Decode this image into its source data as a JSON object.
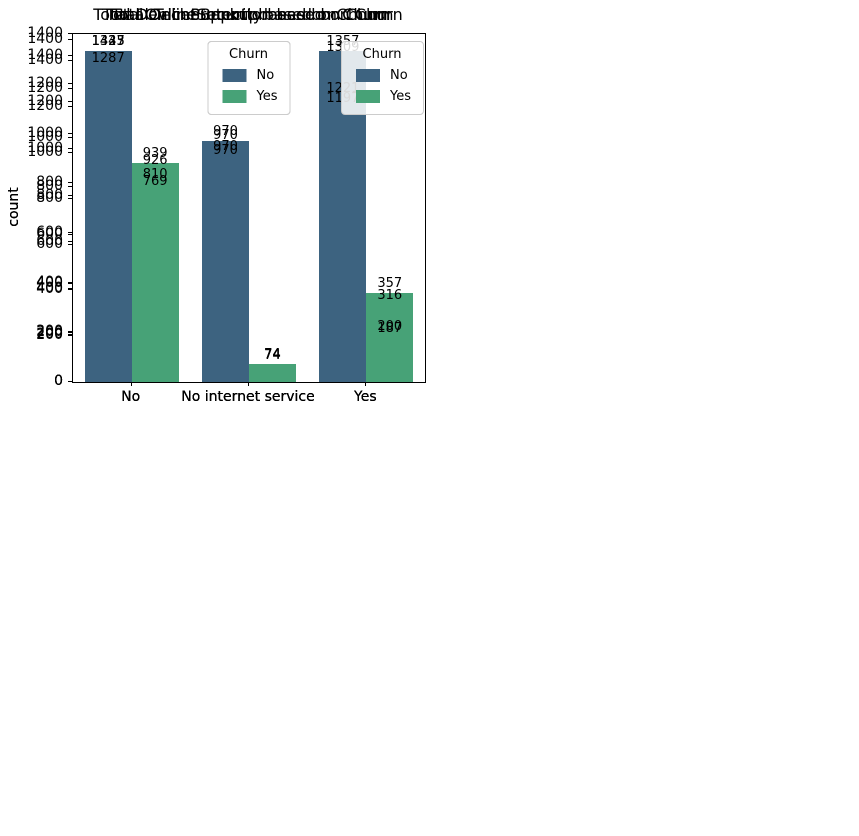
{
  "figure": {
    "background": "#ffffff"
  },
  "palette": {
    "churn_no": "#3d6380",
    "churn_yes": "#47a277"
  },
  "chart_data": [
    {
      "type": "bar",
      "title": "Total OnlineSecurity based on Churn",
      "xlabel": "",
      "ylabel": "count",
      "categories": [
        "No",
        "No internet service",
        "Yes"
      ],
      "series": [
        {
          "name": "No",
          "color": "#3d6380",
          "values": [
            1423,
            970,
            1221
          ]
        },
        {
          "name": "Yes",
          "color": "#47a277",
          "values": [
            939,
            74,
            187
          ]
        }
      ],
      "bar_labels": true,
      "legend_title": "Churn",
      "legend_position": "upper-center",
      "ylim": [
        0,
        1494
      ],
      "yticks": [
        0,
        200,
        400,
        600,
        800,
        1000,
        1200,
        1400
      ],
      "grid": false
    },
    {
      "type": "bar",
      "title": "Total OnlineBackup based on Churn",
      "xlabel": "",
      "ylabel": "count",
      "categories": [
        "No",
        "No internet service",
        "Yes"
      ],
      "series": [
        {
          "name": "No",
          "color": "#3d6380",
          "values": [
            1287,
            970,
            1357
          ]
        },
        {
          "name": "Yes",
          "color": "#47a277",
          "values": [
            810,
            74,
            316
          ]
        }
      ],
      "bar_labels": true,
      "legend_title": "Churn",
      "legend_position": "upper-center",
      "ylim": [
        0,
        1425
      ],
      "yticks": [
        0,
        200,
        400,
        600,
        800,
        1000,
        1200,
        1400
      ],
      "grid": false
    },
    {
      "type": "bar",
      "title": "Total DeviceProtection based on Churn",
      "xlabel": "",
      "ylabel": "count",
      "categories": [
        "No",
        "No internet service",
        "Yes"
      ],
      "series": [
        {
          "name": "No",
          "color": "#3d6380",
          "values": [
            1335,
            970,
            1309
          ]
        },
        {
          "name": "Yes",
          "color": "#47a277",
          "values": [
            769,
            74,
            357
          ]
        }
      ],
      "bar_labels": true,
      "legend_title": "Churn",
      "legend_position": "upper-center",
      "ylim": [
        0,
        1402
      ],
      "yticks": [
        0,
        200,
        400,
        600,
        800,
        1000,
        1200,
        1400
      ],
      "grid": false
    },
    {
      "type": "bar",
      "title": "Total TechSupport based on Churn",
      "xlabel": "",
      "ylabel": "count",
      "categories": [
        "No",
        "No internet service",
        "Yes"
      ],
      "series": [
        {
          "name": "No",
          "color": "#3d6380",
          "values": [
            1447,
            970,
            1197
          ]
        },
        {
          "name": "Yes",
          "color": "#47a277",
          "values": [
            926,
            74,
            200
          ]
        }
      ],
      "bar_labels": true,
      "legend_title": "Churn",
      "legend_position": "upper-right",
      "ylim": [
        0,
        1519
      ],
      "yticks": [
        0,
        200,
        400,
        600,
        800,
        1000,
        1200,
        1400
      ],
      "grid": false
    }
  ]
}
